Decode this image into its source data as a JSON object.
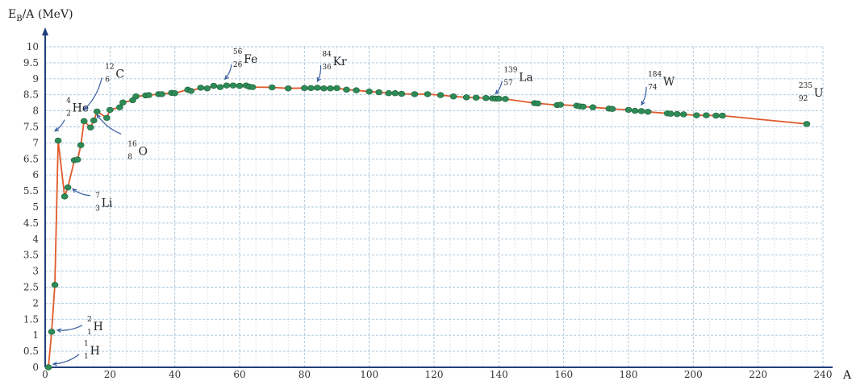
{
  "chart_data": {
    "type": "line",
    "title": "",
    "xlabel": "A",
    "ylabel": "E_B/A (MeV)",
    "ylabel_parts": {
      "main": "E",
      "sub": "B",
      "rest": "/A (MeV)"
    },
    "xlim": [
      0,
      240
    ],
    "ylim": [
      0,
      10
    ],
    "xticks": [
      0,
      20,
      40,
      60,
      80,
      100,
      120,
      140,
      160,
      180,
      200,
      220,
      240
    ],
    "yticks": [
      0,
      0.5,
      1,
      1.5,
      2,
      2.5,
      3,
      3.5,
      4,
      4.5,
      5,
      5.5,
      6,
      6.5,
      7,
      7.5,
      8,
      8.5,
      9,
      9.5,
      10
    ],
    "ytick_labels": [
      "0",
      "0.5",
      "1",
      "1.5",
      "2",
      "2.5",
      "3",
      "3.5",
      "4",
      "4.5",
      "5",
      "5.5",
      "6",
      "6.5",
      "7",
      "7.5",
      "8",
      "8.5",
      "9",
      "9.5",
      "10"
    ],
    "grid": true,
    "line_color": "#e05a2b",
    "marker_color": "#2e8b57",
    "annotation_color": "#3a5fa0",
    "series": [
      {
        "x": [
          1,
          2,
          3,
          4,
          6,
          7,
          9,
          10,
          11,
          12,
          14,
          15,
          16,
          19,
          20,
          23,
          24,
          27,
          28,
          31,
          32,
          35,
          36,
          39,
          40,
          44,
          45,
          48,
          50,
          52,
          54,
          56,
          58,
          60,
          62,
          63,
          64,
          70,
          75,
          80,
          82,
          84,
          86,
          88,
          90,
          93,
          96,
          100,
          103,
          106,
          108,
          110,
          114,
          118,
          122,
          126,
          130,
          133,
          136,
          138,
          139,
          140,
          142,
          151,
          152,
          158,
          159,
          164,
          165,
          166,
          169,
          174,
          175,
          180,
          182,
          184,
          186,
          192,
          193,
          195,
          197,
          201,
          204,
          207,
          209,
          235
        ],
        "y": [
          0,
          1.11,
          2.57,
          7.07,
          5.33,
          5.61,
          6.46,
          6.48,
          6.93,
          7.68,
          7.48,
          7.7,
          7.98,
          7.78,
          8.03,
          8.11,
          8.26,
          8.33,
          8.45,
          8.48,
          8.49,
          8.52,
          8.52,
          8.56,
          8.55,
          8.66,
          8.62,
          8.72,
          8.7,
          8.78,
          8.74,
          8.79,
          8.79,
          8.78,
          8.79,
          8.75,
          8.74,
          8.73,
          8.7,
          8.71,
          8.71,
          8.72,
          8.7,
          8.7,
          8.71,
          8.66,
          8.64,
          8.6,
          8.58,
          8.55,
          8.55,
          8.53,
          8.52,
          8.52,
          8.49,
          8.45,
          8.42,
          8.41,
          8.4,
          8.39,
          8.38,
          8.38,
          8.37,
          8.24,
          8.23,
          8.18,
          8.19,
          8.16,
          8.14,
          8.13,
          8.11,
          8.07,
          8.06,
          8.03,
          8.0,
          7.99,
          7.97,
          7.92,
          7.91,
          7.9,
          7.89,
          7.86,
          7.86,
          7.85,
          7.85,
          7.59
        ]
      }
    ],
    "annotations": [
      {
        "mass": "1",
        "atomic": "1",
        "symbol": "H",
        "x": 1,
        "y": 0
      },
      {
        "mass": "2",
        "atomic": "1",
        "symbol": "H",
        "x": 2,
        "y": 1.11
      },
      {
        "mass": "4",
        "atomic": "2",
        "symbol": "He",
        "x": 4,
        "y": 7.07
      },
      {
        "mass": "7",
        "atomic": "3",
        "symbol": "Li",
        "x": 7,
        "y": 5.61
      },
      {
        "mass": "12",
        "atomic": "6",
        "symbol": "C",
        "x": 12,
        "y": 7.68
      },
      {
        "mass": "16",
        "atomic": "8",
        "symbol": "O",
        "x": 16,
        "y": 7.98
      },
      {
        "mass": "56",
        "atomic": "26",
        "symbol": "Fe",
        "x": 56,
        "y": 8.79
      },
      {
        "mass": "84",
        "atomic": "36",
        "symbol": "Kr",
        "x": 84,
        "y": 8.72
      },
      {
        "mass": "139",
        "atomic": "57",
        "symbol": "La",
        "x": 139,
        "y": 8.38
      },
      {
        "mass": "184",
        "atomic": "74",
        "symbol": "W",
        "x": 184,
        "y": 7.99
      },
      {
        "mass": "235",
        "atomic": "92",
        "symbol": "U",
        "x": 235,
        "y": 7.59
      }
    ]
  }
}
